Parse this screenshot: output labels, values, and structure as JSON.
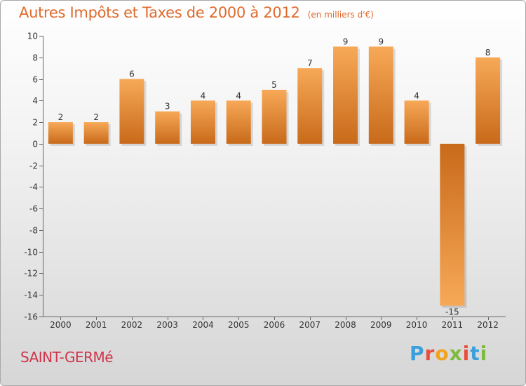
{
  "header": {
    "title": "Autres Impôts et Taxes de 2000 à 2012",
    "unit": "(en milliers d'€)"
  },
  "footer": {
    "commune": "SAINT-GERMé",
    "logo": "Proxiti",
    "logo_colors": [
      "#3aa0dc",
      "#e94e3d",
      "#f3a21d",
      "#7dbb3d",
      "#e94e3d",
      "#3aa0dc",
      "#7dbb3d"
    ]
  },
  "chart_data": {
    "type": "bar",
    "categories": [
      "2000",
      "2001",
      "2002",
      "2003",
      "2004",
      "2005",
      "2006",
      "2007",
      "2008",
      "2009",
      "2010",
      "2011",
      "2012"
    ],
    "values": [
      2,
      2,
      6,
      3,
      4,
      4,
      5,
      7,
      9,
      9,
      4,
      -15,
      8
    ],
    "ylim": [
      -16,
      10
    ],
    "yticks": [
      10,
      8,
      6,
      4,
      2,
      0,
      -2,
      -4,
      -6,
      -8,
      -10,
      -12,
      -14,
      -16
    ],
    "grid": false,
    "colors": {
      "bar_light": "#f7a957",
      "bar_dark": "#c86a1a",
      "axis": "#666666"
    }
  }
}
